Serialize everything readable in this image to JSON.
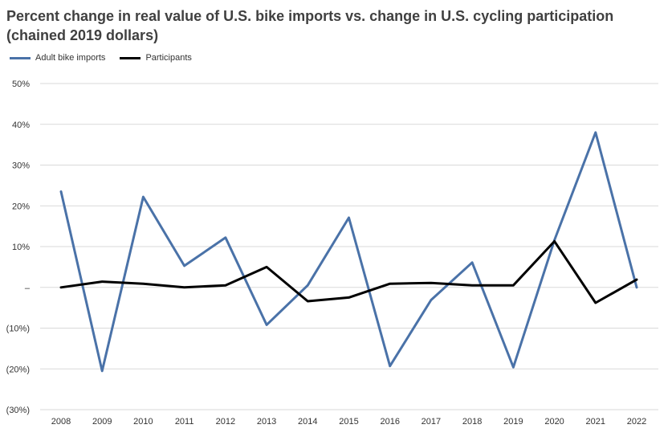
{
  "chart_data": {
    "type": "line",
    "title_line1": "Percent change in real value of U.S. bike imports vs. change in U.S. cycling participation",
    "title_line2": "(chained 2019 dollars)",
    "categories": [
      "2008",
      "2009",
      "2010",
      "2011",
      "2012",
      "2013",
      "2014",
      "2015",
      "2016",
      "2017",
      "2018",
      "2019",
      "2020",
      "2021",
      "2022"
    ],
    "y_ticks": [
      {
        "value": 50,
        "label": "50%"
      },
      {
        "value": 40,
        "label": "40%"
      },
      {
        "value": 30,
        "label": "30%"
      },
      {
        "value": 20,
        "label": "20%"
      },
      {
        "value": 10,
        "label": "10%"
      },
      {
        "value": 0,
        "label": "–"
      },
      {
        "value": -10,
        "label": "(10%)"
      },
      {
        "value": -20,
        "label": "(20%)"
      },
      {
        "value": -30,
        "label": "(30%)"
      }
    ],
    "ylim": [
      -30,
      50
    ],
    "grid": true,
    "legend_position": "top-left",
    "series": [
      {
        "name": "Adult bike imports",
        "color": "#4a72a8",
        "values": [
          23.5,
          -20.5,
          22.2,
          5.3,
          12.2,
          -9.2,
          0.5,
          17.1,
          -19.3,
          -3.1,
          6.1,
          -19.6,
          11.6,
          38.0,
          0.0
        ]
      },
      {
        "name": "Participants",
        "color": "#000000",
        "values": [
          0.0,
          1.4,
          0.9,
          0.0,
          0.5,
          5.0,
          -3.4,
          -2.5,
          0.9,
          1.1,
          0.5,
          0.5,
          11.3,
          -3.8,
          1.9
        ]
      }
    ]
  }
}
